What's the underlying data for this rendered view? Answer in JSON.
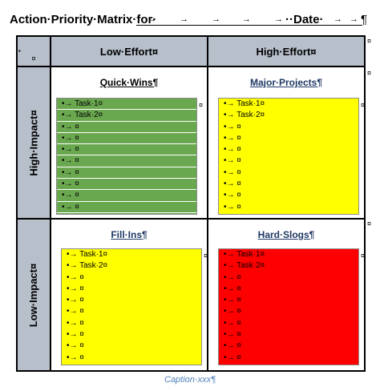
{
  "title": {
    "prefix": "Action·Priority·Matrix·for·",
    "date_label": "··Date·",
    "pilcrow": "¶",
    "tab_arrow": "→"
  },
  "table": {
    "corner_mark": "¤",
    "col_headers": [
      "Low·Effort¤",
      "High·Effort¤"
    ],
    "row_headers": [
      "High·Impact¤",
      "Low·Impact¤"
    ],
    "end_of_row_mark": "¤"
  },
  "quadrants": {
    "quick_wins": {
      "title": "Quick·Wins¶",
      "fill": "#6aa84f",
      "items": [
        "•→ Task·1¤",
        "•→ Task·2¤",
        "•→ ¤",
        "•→ ¤",
        "•→ ¤",
        "•→ ¤",
        "•→ ¤",
        "•→ ¤",
        "•→ ¤",
        "•→ ¤"
      ]
    },
    "major_projects": {
      "title": "Major·Projects¶",
      "fill": "#ffff00",
      "items": [
        "•→ Task·1¤",
        "•→ Task·2¤",
        "•→ ¤",
        "•→ ¤",
        "•→ ¤",
        "•→ ¤",
        "•→ ¤",
        "•→ ¤",
        "•→ ¤",
        "•→ ¤"
      ]
    },
    "fill_ins": {
      "title": "Fill·Ins¶",
      "fill": "#ffff00",
      "items": [
        "•→ Task·1¤",
        "•→ Task·2¤",
        "•→ ¤",
        "•→ ¤",
        "•→ ¤",
        "•→ ¤",
        "•→ ¤",
        "•→ ¤",
        "•→ ¤",
        "•→ ¤"
      ]
    },
    "hard_slogs": {
      "title": "Hard·Slogs¶",
      "fill": "#ff0000",
      "items": [
        "•→ Task·1¤",
        "•→ Task·2¤",
        "•→ ¤",
        "•→ ¤",
        "•→ ¤",
        "•→ ¤",
        "•→ ¤",
        "•→ ¤",
        "•→ ¤",
        "•→ ¤"
      ]
    }
  },
  "caption": "Caption·xxx¶",
  "colors": {
    "header_bg": "#b7bfcb",
    "caption": "#4f81bd",
    "title_colors": {
      "quick_wins": "#000000",
      "major_projects": "#1f3864",
      "fill_ins": "#1f3864",
      "hard_slogs": "#1f3864"
    }
  }
}
